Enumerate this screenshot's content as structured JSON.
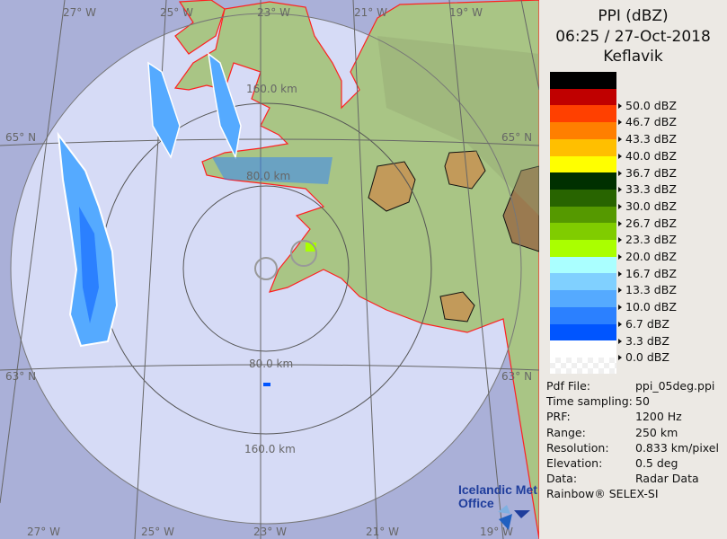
{
  "header": {
    "line1": "PPI (dBZ)",
    "line2": "06:25 / 27-Oct-2018",
    "line3": "Keflavik"
  },
  "legend": [
    {
      "color": "#000000",
      "label": ""
    },
    {
      "color": "#c00000",
      "label": "50.0 dBZ"
    },
    {
      "color": "#ff4000",
      "label": "46.7 dBZ"
    },
    {
      "color": "#ff7f00",
      "label": "43.3 dBZ"
    },
    {
      "color": "#ffbf00",
      "label": "40.0 dBZ"
    },
    {
      "color": "#ffff00",
      "label": "36.7 dBZ"
    },
    {
      "color": "#003000",
      "label": "33.3 dBZ"
    },
    {
      "color": "#286400",
      "label": "30.0 dBZ"
    },
    {
      "color": "#559900",
      "label": "26.7 dBZ"
    },
    {
      "color": "#80cc00",
      "label": "23.3 dBZ"
    },
    {
      "color": "#aaff00",
      "label": "20.0 dBZ"
    },
    {
      "color": "#aaffff",
      "label": "16.7 dBZ"
    },
    {
      "color": "#80d0ff",
      "label": "13.3 dBZ"
    },
    {
      "color": "#55aaff",
      "label": "10.0 dBZ"
    },
    {
      "color": "#2b80ff",
      "label": "6.7 dBZ"
    },
    {
      "color": "#0055ff",
      "label": "3.3 dBZ"
    },
    {
      "color": "#ffffff",
      "label": "0.0 dBZ"
    }
  ],
  "info": [
    {
      "key": "Pdf File:",
      "value": "ppi_05deg.ppi"
    },
    {
      "key": "Time sampling:",
      "value": "50"
    },
    {
      "key": "PRF:",
      "value": "1200 Hz"
    },
    {
      "key": "Range:",
      "value": "250 km"
    },
    {
      "key": "Resolution:",
      "value": "0.833 km/pixel"
    },
    {
      "key": "Elevation:",
      "value": "0.5 deg"
    },
    {
      "key": "Data:",
      "value": "Radar Data"
    }
  ],
  "footer": "Rainbow® SELEX-SI",
  "logo": {
    "line1": "Icelandic Met",
    "line2": "Office"
  },
  "map": {
    "lon_labels": [
      "27° W",
      "25° W",
      "23° W",
      "21° W",
      "19° W"
    ],
    "lat_labels": [
      "65° N",
      "63° N"
    ],
    "ring_labels": [
      "80.0 km",
      "160.0 km"
    ],
    "colors": {
      "outside": "#aab0d8",
      "coverage": "#d6dbf6",
      "coast": "#ff2020",
      "land": "#a9c585"
    }
  }
}
